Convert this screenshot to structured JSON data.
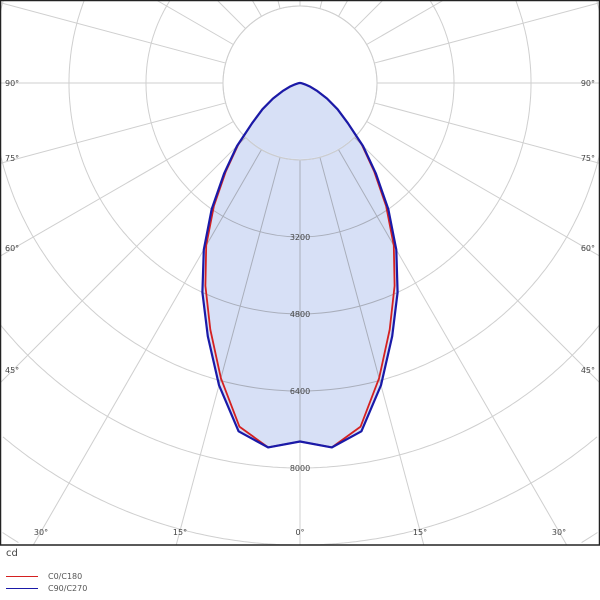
{
  "chart_data": {
    "type": "polar",
    "unit": "cd",
    "ring_labels": [
      "3200",
      "4800",
      "6400",
      "8000"
    ],
    "ring_step": 1600,
    "angle_labels_left": [
      "90°",
      "75°",
      "60°",
      "45°"
    ],
    "angle_labels_right": [
      "90°",
      "75°",
      "60°",
      "45°"
    ],
    "angle_labels_bottom": [
      "30°",
      "15°",
      "0°",
      "15°",
      "30°"
    ],
    "angles": [
      0,
      5,
      10,
      15,
      20,
      25,
      30,
      35,
      40,
      45,
      50,
      55,
      60,
      65,
      70,
      75,
      80,
      85,
      90
    ],
    "series": [
      {
        "name": "C0/C180",
        "color": "#d42020",
        "values": [
          7450,
          7600,
          7250,
          6350,
          5450,
          4650,
          3900,
          3120,
          2400,
          1820,
          1300,
          950,
          650,
          400,
          230,
          110,
          40,
          10,
          0
        ]
      },
      {
        "name": "C90/C270",
        "color": "#1a1aa8",
        "values": [
          7450,
          7600,
          7350,
          6500,
          5600,
          4800,
          4000,
          3200,
          2450,
          1850,
          1300,
          950,
          650,
          400,
          230,
          110,
          40,
          10,
          0
        ]
      }
    ],
    "fill_color": "#d7e0f6",
    "grid": true
  }
}
